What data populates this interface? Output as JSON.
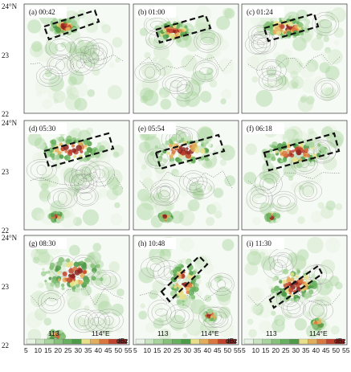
{
  "panels": [
    {
      "label": "(a)  00:42"
    },
    {
      "label": "(b)  01:00"
    },
    {
      "label": "(c)  01:24"
    },
    {
      "label": "(d)  05:30"
    },
    {
      "label": "(e)  05:54"
    },
    {
      "label": "(f)  06:18"
    },
    {
      "label": "(g)  08:30"
    },
    {
      "label": "(h)  10:48"
    },
    {
      "label": "(i)  11:30"
    }
  ],
  "lat_ticks": [
    "24°N",
    "23",
    "22"
  ],
  "lon_ticks": [
    "113",
    "114°E"
  ],
  "colorbar": {
    "unit": "dBz",
    "ticks": [
      "5",
      "10",
      "15",
      "20",
      "25",
      "30",
      "35",
      "40",
      "45",
      "50",
      "55"
    ],
    "colors": [
      "#e6f2e3",
      "#c9e4c1",
      "#a8d49d",
      "#86c27a",
      "#67b05e",
      "#4d9a48",
      "#e9e08a",
      "#e3ae5b",
      "#d9773f",
      "#c0432e",
      "#8e2420"
    ]
  }
}
